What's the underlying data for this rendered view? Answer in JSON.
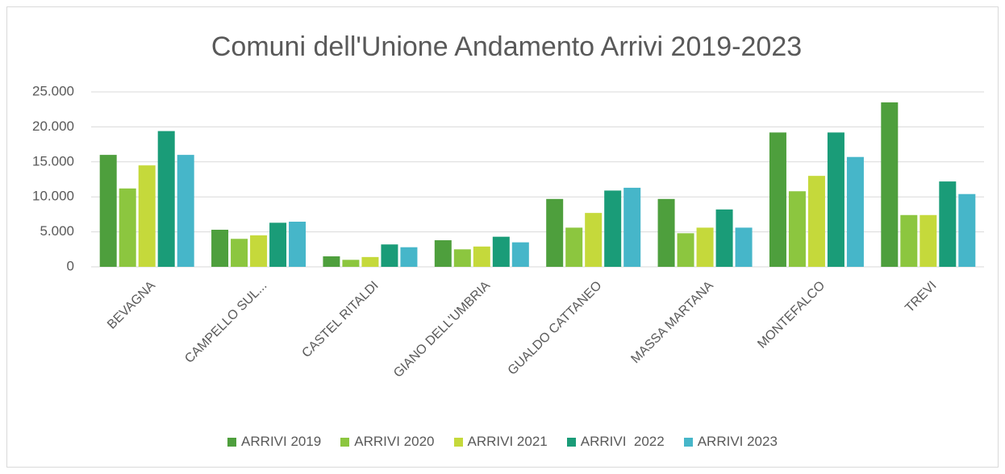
{
  "chart_data": {
    "type": "bar",
    "title": "Comuni dell'Unione Andamento Arrivi 2019-2023",
    "categories": [
      "BEVAGNA",
      "CAMPELLO SUL...",
      "CASTEL RITALDI",
      "GIANO DELL'UMBRIA",
      "GUALDO CATTANEO",
      "MASSA MARTANA",
      "MONTEFALCO",
      "TREVI"
    ],
    "series": [
      {
        "name": "ARRIVI 2019",
        "color": "#4e9f3d",
        "values": [
          16000,
          5300,
          1500,
          3800,
          9700,
          9700,
          19200,
          23500
        ]
      },
      {
        "name": "ARRIVI 2020",
        "color": "#8cc63f",
        "values": [
          11200,
          4000,
          1000,
          2500,
          5600,
          4800,
          10800,
          7400
        ]
      },
      {
        "name": "ARRIVI 2021",
        "color": "#c5d93b",
        "values": [
          14500,
          4500,
          1400,
          2900,
          7700,
          5600,
          13000,
          7400
        ]
      },
      {
        "name": "ARRIVI  2022",
        "color": "#1a9c78",
        "values": [
          19400,
          6300,
          3200,
          4300,
          10900,
          8200,
          19200,
          12200
        ]
      },
      {
        "name": "ARRIVI 2023",
        "color": "#46b6c9",
        "values": [
          16000,
          6450,
          2800,
          3500,
          11300,
          5600,
          15700,
          10400
        ]
      }
    ],
    "ylim": [
      0,
      25000
    ],
    "yticks": [
      0,
      {
        "value": 5000,
        "label": "5.000"
      },
      {
        "value": 10000,
        "label": "10.000"
      },
      {
        "value": 15000,
        "label": "15.000"
      },
      {
        "value": 20000,
        "label": "20.000"
      },
      {
        "value": 25000,
        "label": "25.000"
      }
    ],
    "grid": true,
    "legend": "bottom"
  }
}
